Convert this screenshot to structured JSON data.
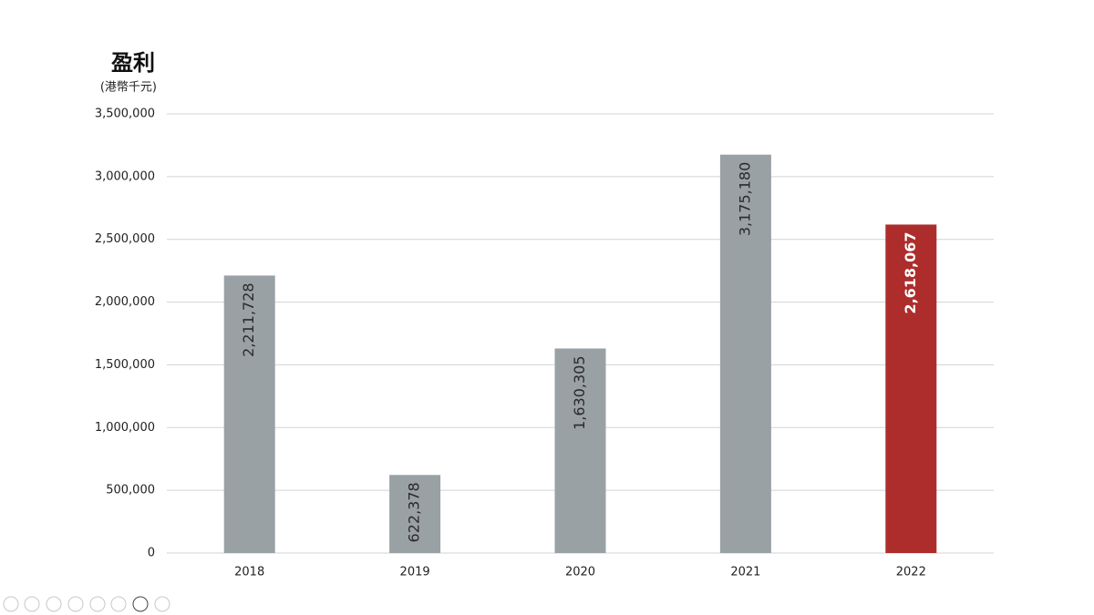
{
  "chart_data": {
    "type": "bar",
    "title": "盈利",
    "subtitle": "(港幣千元)",
    "categories": [
      "2018",
      "2019",
      "2020",
      "2021",
      "2022"
    ],
    "values": [
      2211728,
      622378,
      1630305,
      3175180,
      2618067
    ],
    "value_labels": [
      "2,211,728",
      "622,378",
      "1,630,305",
      "3,175,180",
      "2,618,067"
    ],
    "colors": [
      "#9aa1a5",
      "#9aa1a5",
      "#9aa1a5",
      "#9aa1a5",
      "#ad2d2d"
    ],
    "value_label_colors": [
      "#2a2a2a",
      "#2a2a2a",
      "#2a2a2a",
      "#2a2a2a",
      "#ffffff"
    ],
    "ylim": [
      0,
      3500000
    ],
    "yticks": [
      0,
      {
        "value": 500000,
        "label": "500,000"
      },
      {
        "value": 1000000,
        "label": "1,000,000"
      },
      {
        "value": 1500000,
        "label": "1,500,000"
      },
      {
        "value": 2000000,
        "label": "2,000,000"
      },
      {
        "value": 2500000,
        "label": "2,500,000"
      },
      {
        "value": 3000000,
        "label": "3,000,000"
      },
      {
        "value": 3500000,
        "label": "3,500,000"
      }
    ],
    "grid": true
  }
}
